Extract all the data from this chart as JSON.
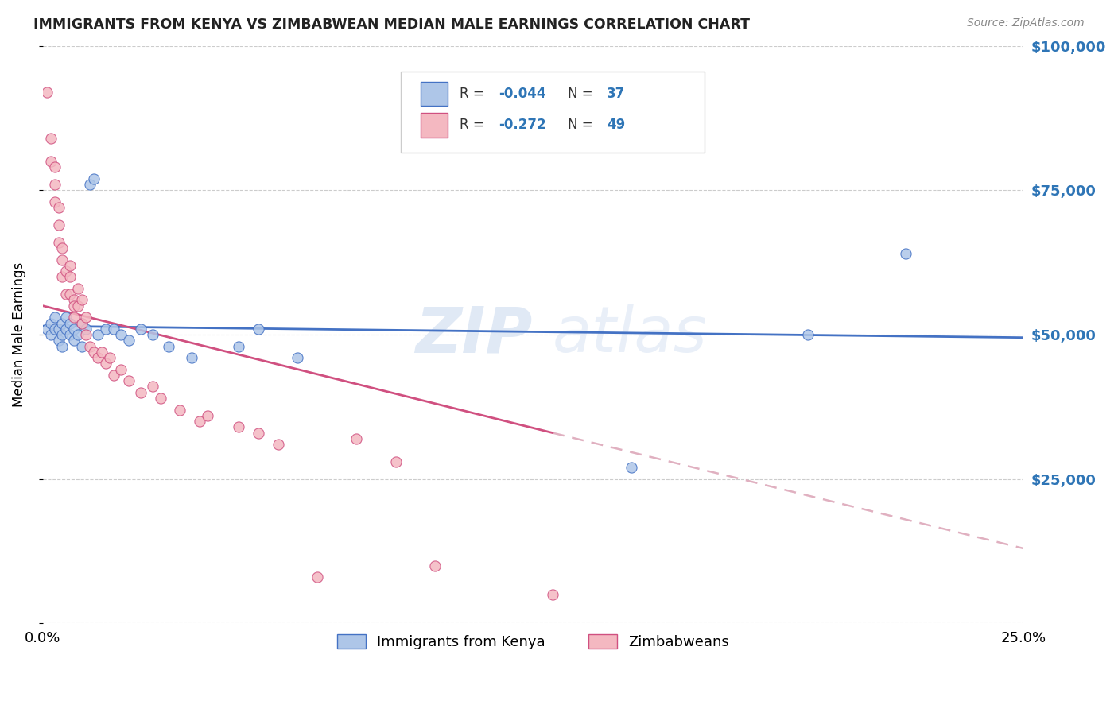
{
  "title": "IMMIGRANTS FROM KENYA VS ZIMBABWEAN MEDIAN MALE EARNINGS CORRELATION CHART",
  "source": "Source: ZipAtlas.com",
  "ylabel": "Median Male Earnings",
  "x_min": 0.0,
  "x_max": 0.25,
  "y_min": 0,
  "y_max": 100000,
  "y_ticks": [
    0,
    25000,
    50000,
    75000,
    100000
  ],
  "y_tick_labels": [
    "",
    "$25,000",
    "$50,000",
    "$75,000",
    "$100,000"
  ],
  "x_ticks": [
    0.0,
    0.25
  ],
  "x_tick_labels": [
    "0.0%",
    "25.0%"
  ],
  "legend_labels": [
    "Immigrants from Kenya",
    "Zimbabweans"
  ],
  "R_kenya": -0.044,
  "N_kenya": 37,
  "R_zimbabwe": -0.272,
  "N_zimbabwe": 49,
  "color_kenya": "#aec6e8",
  "color_zimbabwe": "#f4b8c1",
  "color_kenya_line": "#4472c4",
  "color_zimbabwe_line": "#d05080",
  "color_dashed": "#e0b0c0",
  "color_title": "#222222",
  "color_axis_labels": "#2e75b6",
  "color_source": "#888888",
  "watermark_zip": "ZIP",
  "watermark_atlas": "atlas",
  "kenya_scatter_x": [
    0.001,
    0.002,
    0.002,
    0.003,
    0.003,
    0.004,
    0.004,
    0.005,
    0.005,
    0.005,
    0.006,
    0.006,
    0.007,
    0.007,
    0.008,
    0.008,
    0.009,
    0.01,
    0.01,
    0.011,
    0.012,
    0.013,
    0.014,
    0.016,
    0.018,
    0.02,
    0.022,
    0.025,
    0.028,
    0.032,
    0.038,
    0.05,
    0.055,
    0.065,
    0.15,
    0.195,
    0.22
  ],
  "kenya_scatter_y": [
    51000,
    50000,
    52000,
    51000,
    53000,
    49000,
    51000,
    50000,
    52000,
    48000,
    51000,
    53000,
    50000,
    52000,
    49000,
    51000,
    50000,
    52000,
    48000,
    51000,
    76000,
    77000,
    50000,
    51000,
    51000,
    50000,
    49000,
    51000,
    50000,
    48000,
    46000,
    48000,
    51000,
    46000,
    27000,
    50000,
    64000
  ],
  "zimbabwe_scatter_x": [
    0.001,
    0.002,
    0.002,
    0.003,
    0.003,
    0.003,
    0.004,
    0.004,
    0.004,
    0.005,
    0.005,
    0.005,
    0.006,
    0.006,
    0.007,
    0.007,
    0.007,
    0.008,
    0.008,
    0.008,
    0.009,
    0.009,
    0.01,
    0.01,
    0.011,
    0.011,
    0.012,
    0.013,
    0.014,
    0.015,
    0.016,
    0.017,
    0.018,
    0.02,
    0.022,
    0.025,
    0.028,
    0.03,
    0.035,
    0.04,
    0.042,
    0.05,
    0.055,
    0.06,
    0.07,
    0.08,
    0.09,
    0.1,
    0.13
  ],
  "zimbabwe_scatter_y": [
    92000,
    84000,
    80000,
    79000,
    76000,
    73000,
    72000,
    69000,
    66000,
    63000,
    60000,
    65000,
    57000,
    61000,
    57000,
    60000,
    62000,
    56000,
    53000,
    55000,
    55000,
    58000,
    52000,
    56000,
    50000,
    53000,
    48000,
    47000,
    46000,
    47000,
    45000,
    46000,
    43000,
    44000,
    42000,
    40000,
    41000,
    39000,
    37000,
    35000,
    36000,
    34000,
    33000,
    31000,
    8000,
    32000,
    28000,
    10000,
    5000
  ],
  "kenya_trend_x0": 0.0,
  "kenya_trend_y0": 51500,
  "kenya_trend_x1": 0.25,
  "kenya_trend_y1": 49500,
  "zim_trend_x0": 0.0,
  "zim_trend_y0": 55000,
  "zim_trend_x1_solid": 0.13,
  "zim_trend_y1_solid": 33000,
  "zim_trend_x1_dash": 0.25,
  "zim_trend_y1_dash": 13000
}
